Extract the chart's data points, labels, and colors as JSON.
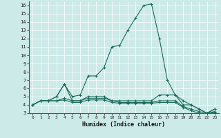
{
  "xlabel": "Humidex (Indice chaleur)",
  "background_color": "#cceae8",
  "line_color": "#1a6b5a",
  "xlim": [
    -0.5,
    23.5
  ],
  "ylim": [
    3,
    16.5
  ],
  "x_ticks": [
    0,
    1,
    2,
    3,
    4,
    5,
    6,
    7,
    8,
    9,
    10,
    11,
    12,
    13,
    14,
    15,
    16,
    17,
    18,
    19,
    20,
    21,
    22,
    23
  ],
  "y_ticks": [
    3,
    4,
    5,
    6,
    7,
    8,
    9,
    10,
    11,
    12,
    13,
    14,
    15,
    16
  ],
  "lines": [
    {
      "x": [
        0,
        1,
        2,
        3,
        4,
        5,
        6,
        7,
        8,
        9,
        10,
        11,
        12,
        13,
        14,
        15,
        16,
        17,
        18,
        19,
        20,
        21,
        22,
        23
      ],
      "y": [
        4,
        4.5,
        4.5,
        5,
        6.5,
        5,
        5.2,
        7.5,
        7.5,
        8.5,
        11,
        11.2,
        13,
        14.5,
        16,
        16.2,
        12,
        7,
        5.2,
        4.5,
        4,
        3.5,
        3,
        3.5
      ]
    },
    {
      "x": [
        0,
        1,
        2,
        3,
        4,
        5,
        6,
        7,
        8,
        9,
        10,
        11,
        12,
        13,
        14,
        15,
        16,
        17,
        18,
        19,
        20,
        21,
        22,
        23
      ],
      "y": [
        4,
        4.5,
        4.5,
        5,
        6.5,
        4.5,
        4.5,
        5,
        5,
        5,
        4.5,
        4.5,
        4.5,
        4.5,
        4.5,
        4.5,
        5.2,
        5.2,
        5.2,
        4,
        4,
        3.5,
        3,
        3.5
      ]
    },
    {
      "x": [
        0,
        1,
        2,
        3,
        4,
        5,
        6,
        7,
        8,
        9,
        10,
        11,
        12,
        13,
        14,
        15,
        16,
        17,
        18,
        19,
        20,
        21,
        22,
        23
      ],
      "y": [
        4,
        4.5,
        4.5,
        4.5,
        4.8,
        4.5,
        4.5,
        4.8,
        4.8,
        4.8,
        4.5,
        4.3,
        4.3,
        4.3,
        4.3,
        4.3,
        4.5,
        4.5,
        4.5,
        3.8,
        3.5,
        3.2,
        3,
        3.2
      ]
    },
    {
      "x": [
        0,
        1,
        2,
        3,
        4,
        5,
        6,
        7,
        8,
        9,
        10,
        11,
        12,
        13,
        14,
        15,
        16,
        17,
        18,
        19,
        20,
        21,
        22,
        23
      ],
      "y": [
        4,
        4.5,
        4.5,
        4.5,
        4.6,
        4.3,
        4.3,
        4.6,
        4.6,
        4.6,
        4.3,
        4.2,
        4.2,
        4.2,
        4.2,
        4.2,
        4.3,
        4.3,
        4.3,
        3.7,
        3.3,
        3.0,
        2.9,
        3.1
      ]
    }
  ]
}
